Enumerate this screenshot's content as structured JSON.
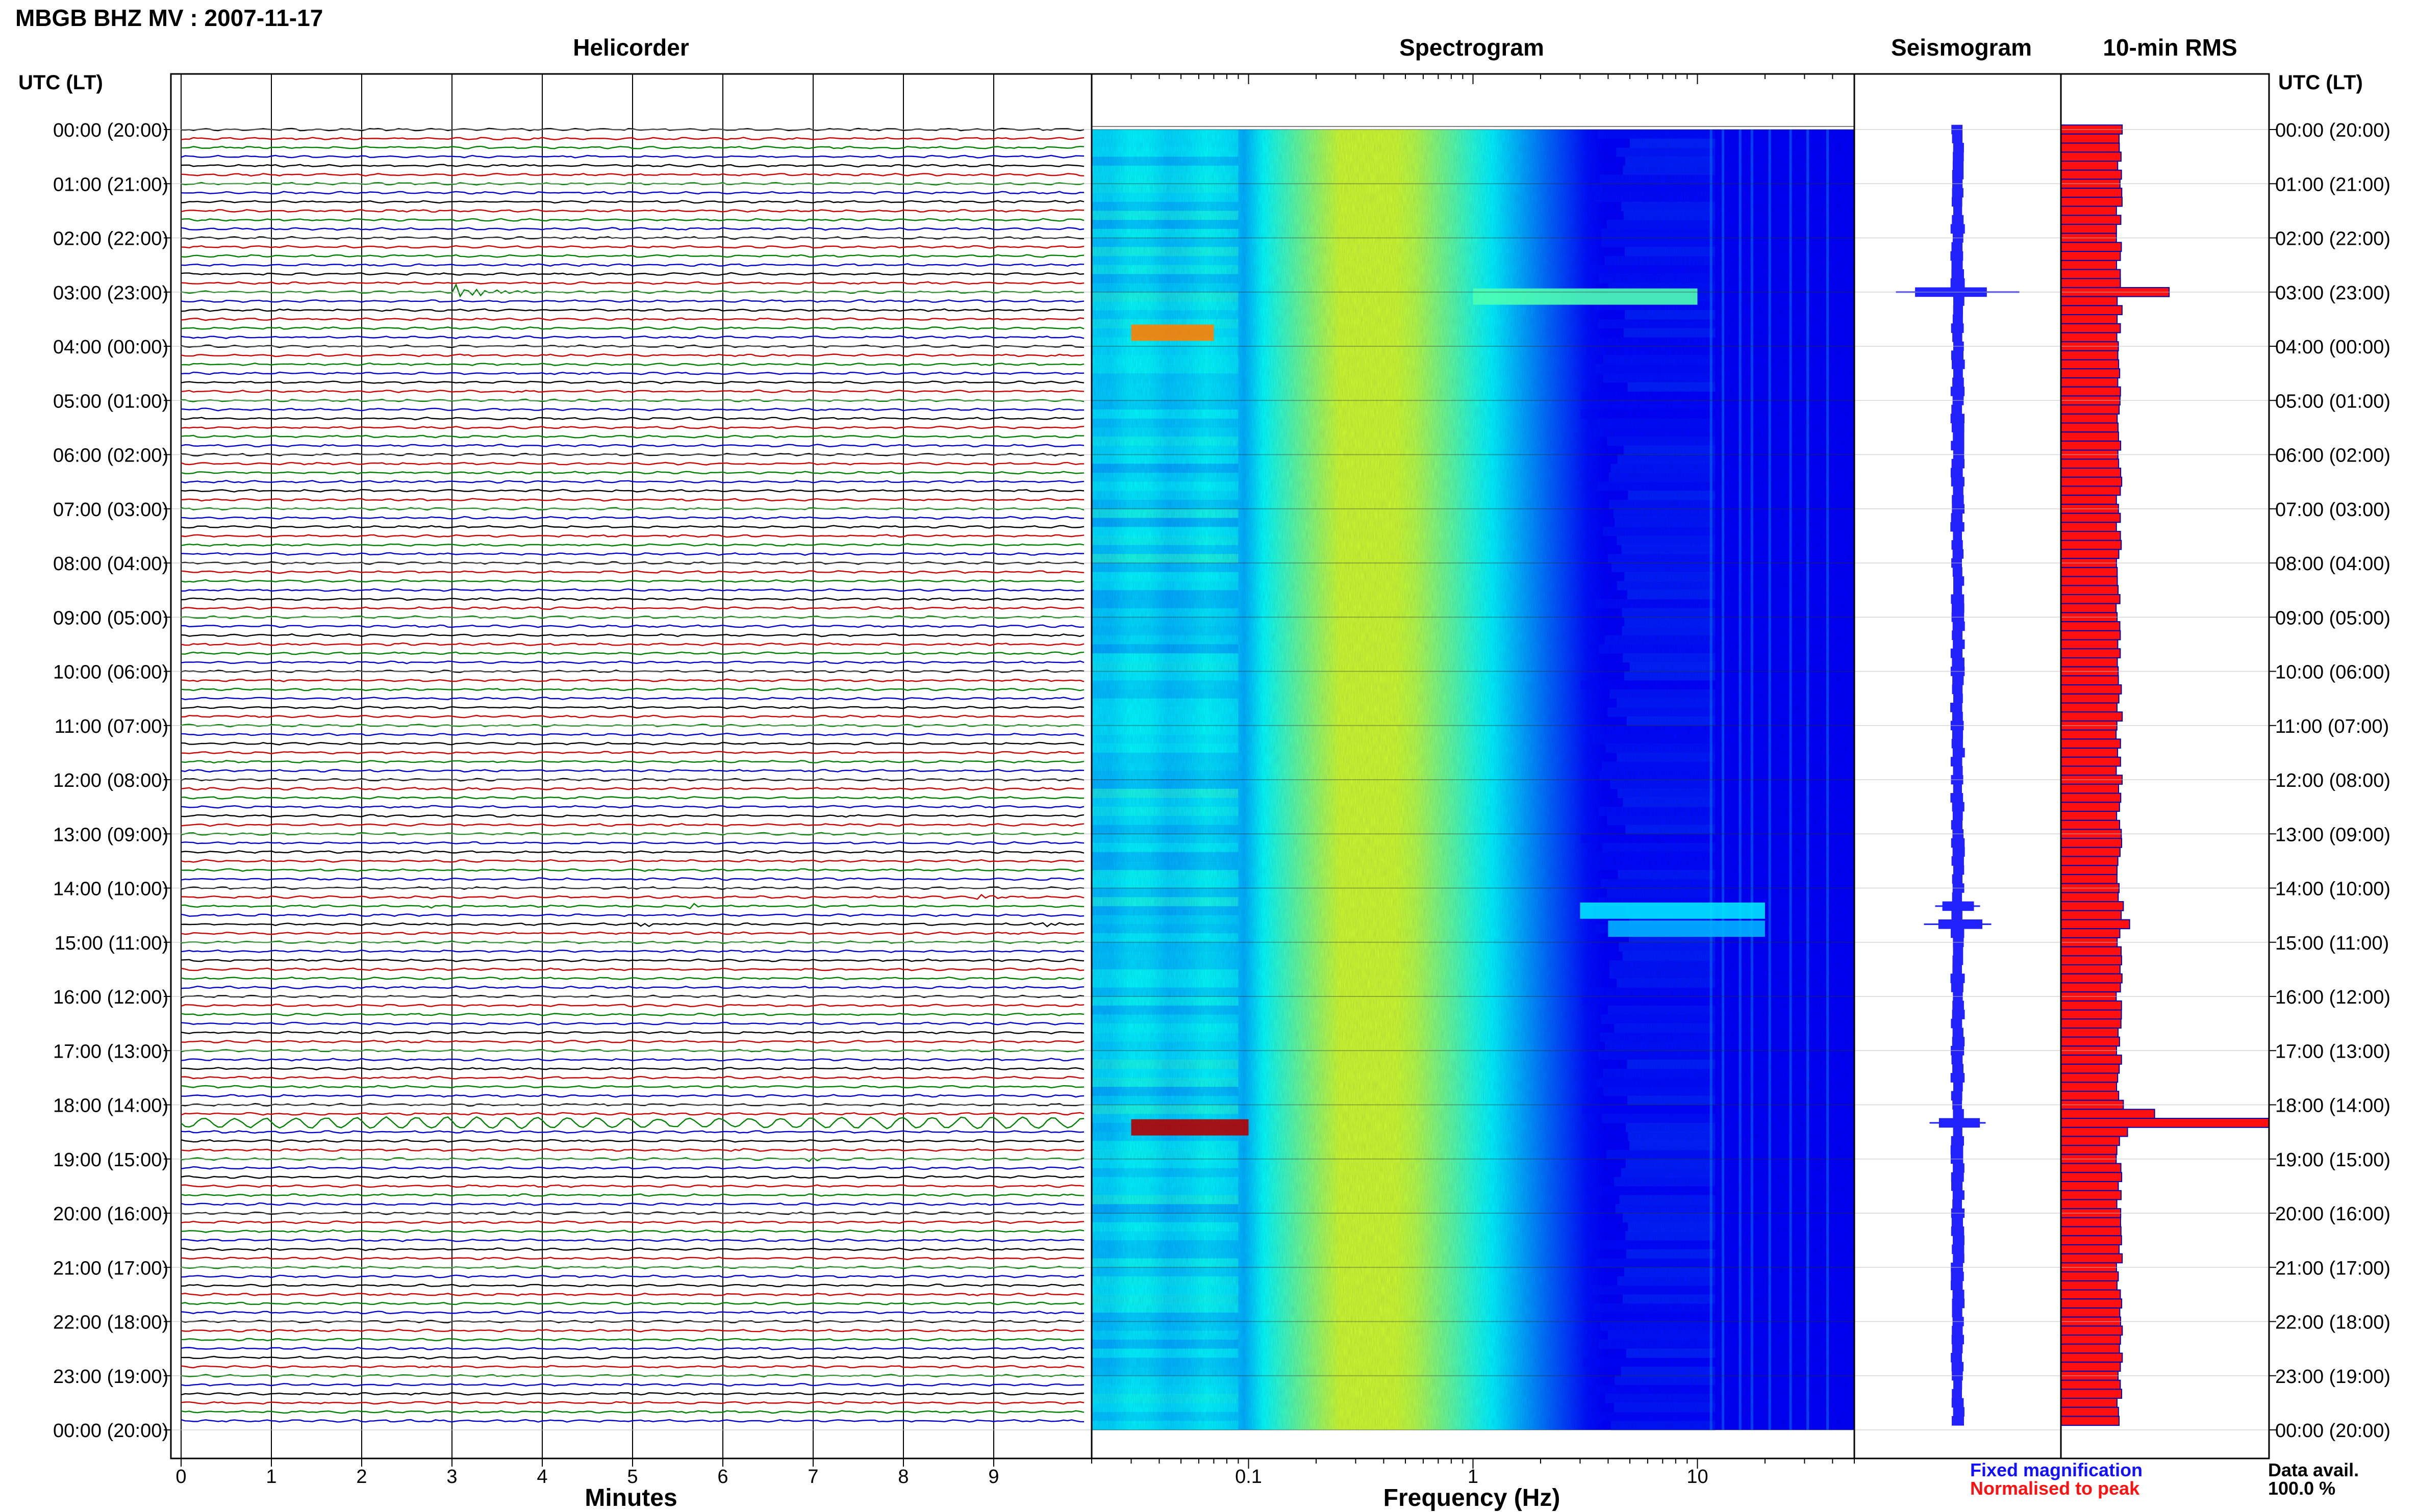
{
  "title": "MBGB BHZ MV : 2007-11-17",
  "panels": {
    "helicorder": "Helicorder",
    "spectrogram": "Spectrogram",
    "seismogram": "Seismogram",
    "rms": "10-min RMS"
  },
  "timezone_label": "UTC (LT)",
  "hour_labels": [
    "00:00 (20:00)",
    "01:00 (21:00)",
    "02:00 (22:00)",
    "03:00 (23:00)",
    "04:00 (00:00)",
    "05:00 (01:00)",
    "06:00 (02:00)",
    "07:00 (03:00)",
    "08:00 (04:00)",
    "09:00 (05:00)",
    "10:00 (06:00)",
    "11:00 (07:00)",
    "12:00 (08:00)",
    "13:00 (09:00)",
    "14:00 (10:00)",
    "15:00 (11:00)",
    "16:00 (12:00)",
    "17:00 (13:00)",
    "18:00 (14:00)",
    "19:00 (15:00)",
    "20:00 (16:00)",
    "21:00 (17:00)",
    "22:00 (18:00)",
    "23:00 (19:00)",
    "00:00 (20:00)"
  ],
  "legend": {
    "fixed": "Fixed magnification",
    "normalised": "Normalised to peak",
    "data_avail_label": "Data avail.",
    "data_avail_value": "100.0 %"
  },
  "colors": {
    "trace_cycle": [
      "#000000",
      "#cc0000",
      "#008000",
      "#0000cc"
    ],
    "seismogram": "#2222ff",
    "rms_fill": "#ff1010",
    "rms_edge": "#0000aa"
  },
  "chart_data": [
    {
      "type": "line",
      "name": "helicorder",
      "title": "Helicorder",
      "xlabel": "Minutes",
      "xlim": [
        0,
        10
      ],
      "xticks": [
        0,
        1,
        2,
        3,
        4,
        5,
        6,
        7,
        8,
        9
      ],
      "rows_per_hour": 6,
      "hours": 24,
      "events": [
        {
          "row": 18,
          "minute": 3.0,
          "amp": 1.6,
          "len": 0.9
        },
        {
          "row": 86,
          "minute": 2.7,
          "amp": 0.3,
          "len": 0.6
        },
        {
          "row": 86,
          "minute": 5.6,
          "amp": 0.5,
          "len": 0.6
        },
        {
          "row": 85,
          "minute": 7.3,
          "amp": 0.3,
          "len": 0.5
        },
        {
          "row": 85,
          "minute": 8.8,
          "amp": 0.5,
          "len": 0.8
        },
        {
          "row": 88,
          "minute": 5.0,
          "amp": 0.6,
          "len": 0.6
        },
        {
          "row": 88,
          "minute": 9.4,
          "amp": 0.9,
          "len": 0.6
        },
        {
          "row": 110,
          "minute": 0.0,
          "amp": 0.9,
          "len": 10.0
        },
        {
          "row": 113,
          "minute": 6.0,
          "amp": 0.4,
          "len": 0.4
        },
        {
          "row": 114,
          "minute": 6.9,
          "amp": 0.4,
          "len": 0.8
        }
      ]
    },
    {
      "type": "heatmap",
      "name": "spectrogram",
      "title": "Spectrogram",
      "xlabel": "Frequency (Hz)",
      "xscale": "log",
      "xlim": [
        0.02,
        50
      ],
      "xticks": [
        0.1,
        1,
        10
      ],
      "xtick_labels": [
        "0.1",
        "1",
        "10"
      ],
      "bursts": [
        {
          "row": 18,
          "fmin": 1.0,
          "fmax": 10.0,
          "level": 0.45
        },
        {
          "row": 22,
          "fmin": 0.03,
          "fmax": 0.07,
          "level": 0.75
        },
        {
          "row": 86,
          "fmin": 3.0,
          "fmax": 20.0,
          "level": 0.35
        },
        {
          "row": 88,
          "fmin": 4.0,
          "fmax": 20.0,
          "level": 0.3
        },
        {
          "row": 110,
          "fmin": 0.03,
          "fmax": 0.1,
          "level": 0.95
        }
      ]
    },
    {
      "type": "line",
      "name": "seismogram",
      "title": "Seismogram",
      "events": [
        {
          "row": 18,
          "amp": 5.5
        },
        {
          "row": 86,
          "amp": 2.0
        },
        {
          "row": 88,
          "amp": 3.0
        },
        {
          "row": 110,
          "amp": 2.5
        }
      ]
    },
    {
      "type": "bar",
      "name": "rms",
      "title": "10-min RMS",
      "orientation": "horizontal",
      "xlim": [
        0,
        1
      ],
      "baseline": 0.28,
      "bars": [
        {
          "row": 18,
          "value": 0.52
        },
        {
          "row": 86,
          "value": 0.3
        },
        {
          "row": 88,
          "value": 0.33
        },
        {
          "row": 108,
          "value": 0.3
        },
        {
          "row": 109,
          "value": 0.45
        },
        {
          "row": 110,
          "value": 1.0
        },
        {
          "row": 111,
          "value": 0.32
        }
      ]
    }
  ]
}
